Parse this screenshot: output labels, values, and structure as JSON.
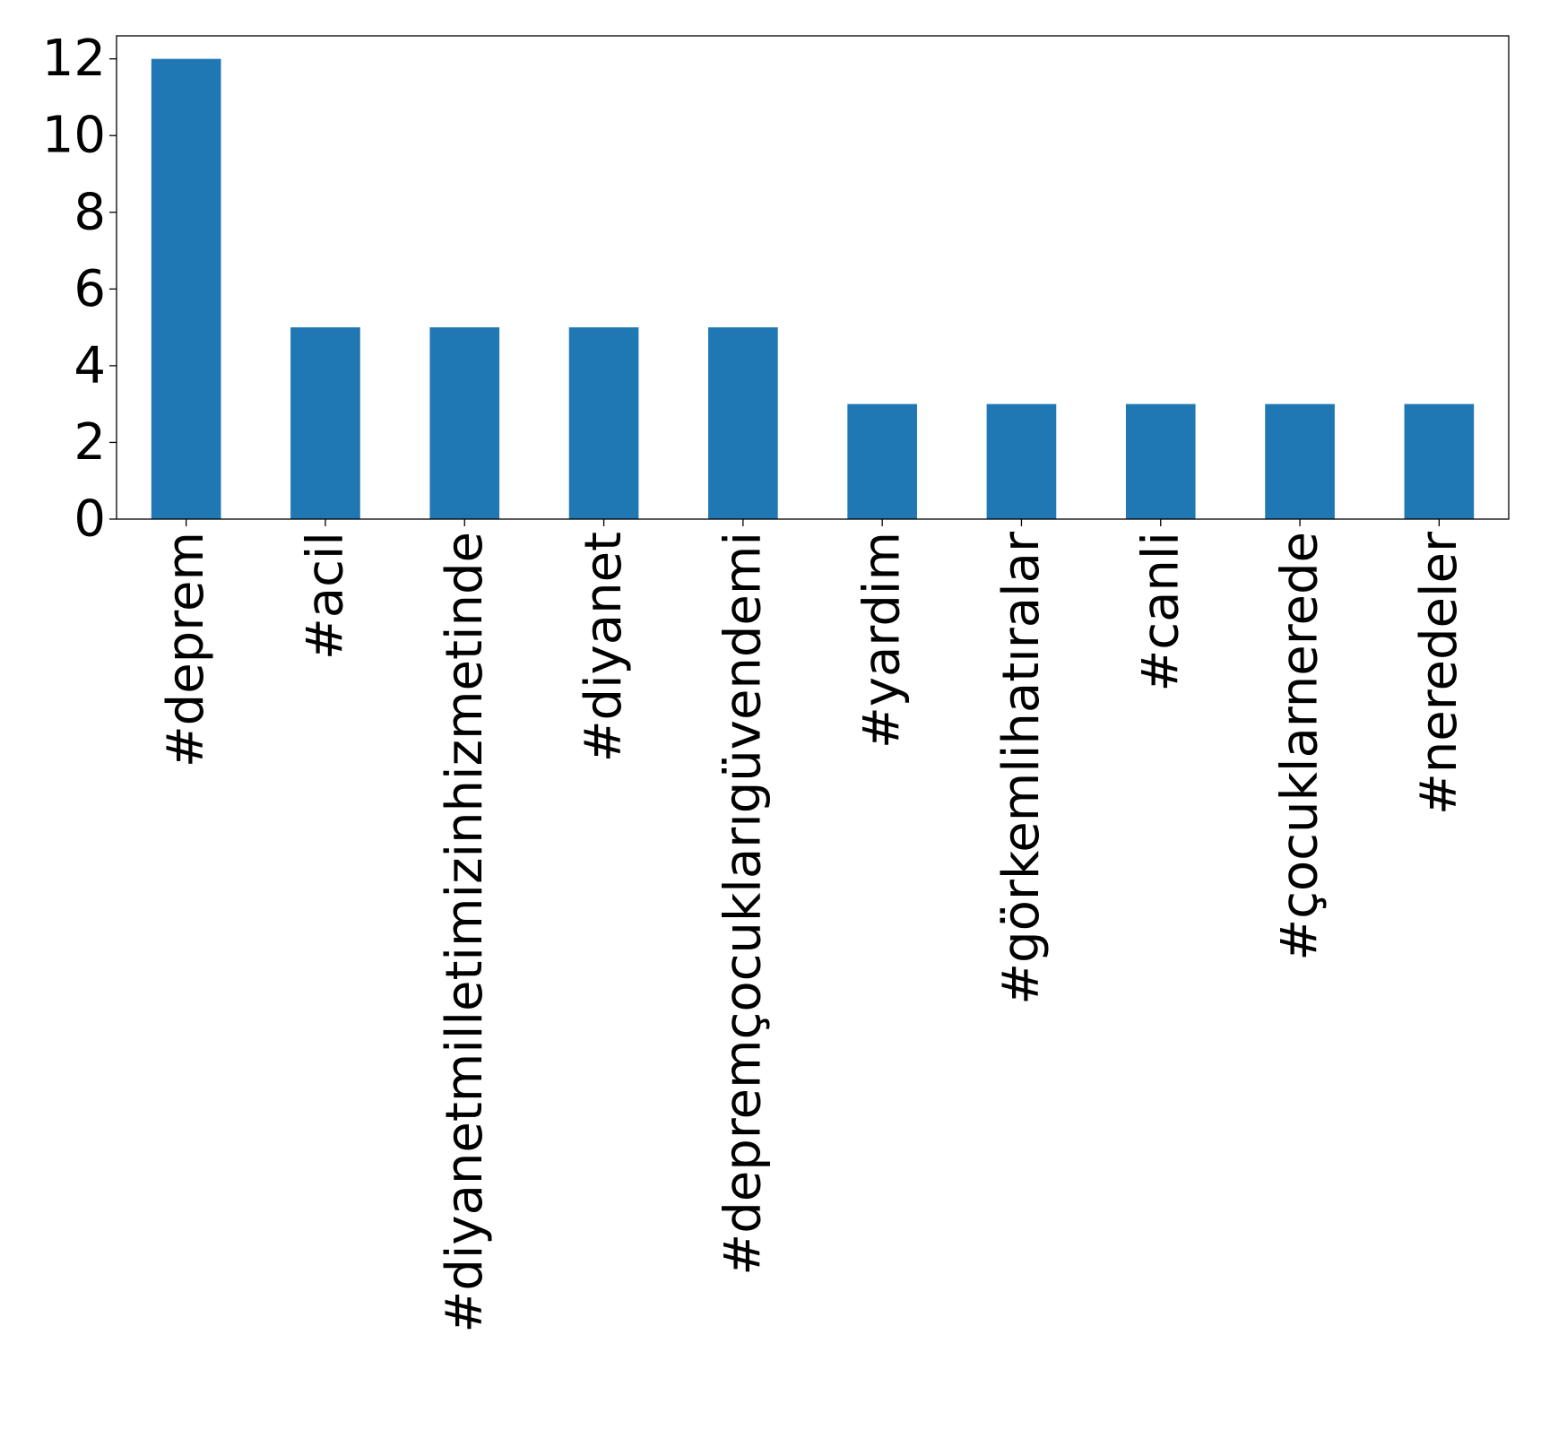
{
  "chart_data": {
    "type": "bar",
    "title": "",
    "xlabel": "",
    "ylabel": "",
    "categories": [
      "#deprem",
      "#acil",
      "#diyanetmilletimizinhizmetinde",
      "#diyanet",
      "#depremçocuklarıgüvendemi",
      "#yardim",
      "#görkemlihatıralar",
      "#canli",
      "#çocuklarnerede",
      "#neredeler"
    ],
    "values": [
      12,
      5,
      5,
      5,
      5,
      3,
      3,
      3,
      3,
      3
    ],
    "ylim": [
      0,
      12.6
    ],
    "yticks": [
      "0",
      "2",
      "4",
      "6",
      "8",
      "10",
      "12"
    ],
    "grid": false,
    "legend": "none",
    "bar_color": "#1f77b4"
  }
}
